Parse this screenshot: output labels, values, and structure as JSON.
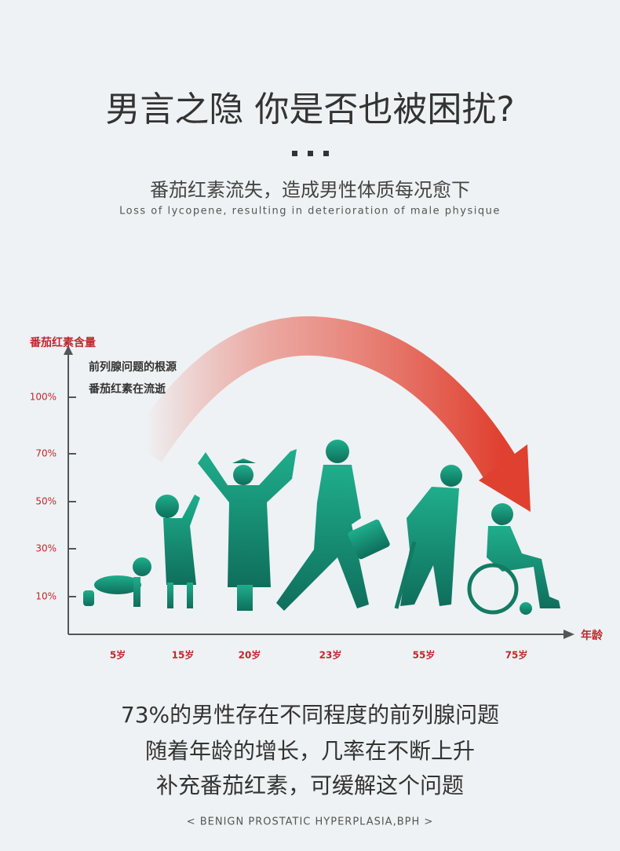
{
  "header": {
    "title": "男言之隐  你是否也被困扰?",
    "subtitle": "番茄红素流失，造成男性体质每况愈下",
    "subtitle_en": "Loss of lycopene, resulting in deterioration of male physique"
  },
  "chart": {
    "y_axis_label": "番茄红素含量",
    "annotation": [
      "前列腺问题的根源",
      "番茄红素在流逝"
    ],
    "y_labels": [
      "100%",
      "70%",
      "50%",
      "30%",
      "10%"
    ],
    "x_axis_label": "年龄",
    "x_labels": [
      "5岁",
      "15岁",
      "20岁",
      "23岁",
      "55岁",
      "75岁"
    ]
  },
  "footer": {
    "lines": [
      "73%的男性存在不同程度的前列腺问题",
      "随着年龄的增长，几率在不断上升",
      "补充番茄红素，可缓解这个问题"
    ],
    "note": "< BENIGN PROSTATIC HYPERPLASIA,BPH >"
  }
}
